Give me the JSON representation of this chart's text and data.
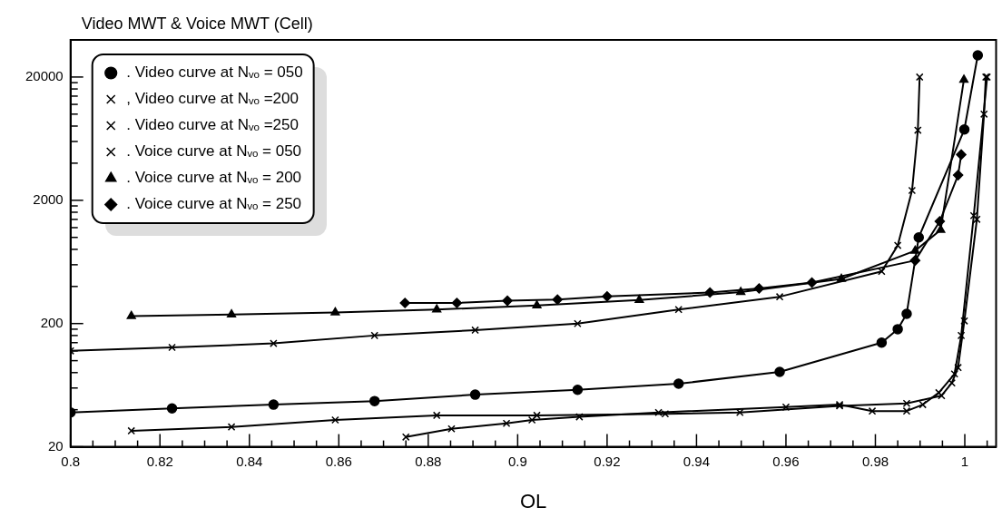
{
  "chart_data": {
    "type": "line",
    "title": "Video MWT & Voice MWT (Cell)",
    "xlabel": "OL",
    "log": "y",
    "grid": false,
    "legend": "top left",
    "line_style": "solid",
    "xlim": [
      0.8,
      1.007
    ],
    "xticks": [
      0.8,
      {
        "value": 0.805,
        "label": null
      },
      {
        "value": 0.81,
        "label": null
      },
      {
        "value": 0.815,
        "label": null
      },
      0.82,
      {
        "value": 0.825,
        "label": null
      },
      {
        "value": 0.83,
        "label": null
      },
      {
        "value": 0.835,
        "label": null
      },
      0.84,
      {
        "value": 0.845,
        "label": null
      },
      {
        "value": 0.85,
        "label": null
      },
      {
        "value": 0.855,
        "label": null
      },
      0.86,
      {
        "value": 0.865,
        "label": null
      },
      {
        "value": 0.87,
        "label": null
      },
      {
        "value": 0.875,
        "label": null
      },
      0.88,
      {
        "value": 0.885,
        "label": null
      },
      {
        "value": 0.89,
        "label": null
      },
      {
        "value": 0.895,
        "label": null
      },
      0.9,
      {
        "value": 0.905,
        "label": null
      },
      {
        "value": 0.91,
        "label": null
      },
      {
        "value": 0.915,
        "label": null
      },
      0.92,
      {
        "value": 0.925,
        "label": null
      },
      {
        "value": 0.93,
        "label": null
      },
      {
        "value": 0.935,
        "label": null
      },
      0.94,
      {
        "value": 0.945,
        "label": null
      },
      {
        "value": 0.95,
        "label": null
      },
      {
        "value": 0.955,
        "label": null
      },
      0.96,
      {
        "value": 0.965,
        "label": null
      },
      {
        "value": 0.97,
        "label": null
      },
      {
        "value": 0.975,
        "label": null
      },
      0.98,
      {
        "value": 0.985,
        "label": null
      },
      {
        "value": 0.99,
        "label": null
      },
      {
        "value": 0.995,
        "label": null
      },
      1,
      {
        "value": 1.005,
        "label": null
      }
    ],
    "ylim": [
      20,
      40000
    ],
    "yticks": [
      20,
      {
        "value": 40,
        "label": null
      },
      {
        "value": 60,
        "label": null
      },
      {
        "value": 80,
        "label": null
      },
      {
        "value": 100,
        "label": null
      },
      {
        "value": 120,
        "label": null
      },
      {
        "value": 140,
        "label": null
      },
      {
        "value": 160,
        "label": null
      },
      {
        "value": 180,
        "label": null
      },
      200,
      {
        "value": 400,
        "label": null
      },
      {
        "value": 600,
        "label": null
      },
      {
        "value": 800,
        "label": null
      },
      {
        "value": 1000,
        "label": null
      },
      {
        "value": 1200,
        "label": null
      },
      {
        "value": 1400,
        "label": null
      },
      {
        "value": 1600,
        "label": null
      },
      {
        "value": 1800,
        "label": null
      },
      2000,
      {
        "value": 4000,
        "label": null
      },
      {
        "value": 6000,
        "label": null
      },
      {
        "value": 8000,
        "label": null
      },
      {
        "value": 10000,
        "label": null
      },
      {
        "value": 12000,
        "label": null
      },
      {
        "value": 14000,
        "label": null
      },
      {
        "value": 16000,
        "label": null
      },
      {
        "value": 18000,
        "label": null
      },
      20000
    ],
    "series": [
      {
        "name": ". Video curve at Nᵥₒ = 050",
        "color": "#000000",
        "marker": "circle",
        "x": [
          0.8,
          0.8227,
          0.8454,
          0.868,
          0.8905,
          0.9134,
          0.936,
          0.9586,
          0.9814,
          0.985,
          0.987,
          0.9897,
          0.9999,
          1.0029
        ],
        "values": [
          38,
          41,
          44,
          47,
          53,
          58,
          65,
          81,
          140,
          180,
          240,
          1000,
          7500,
          30000
        ]
      },
      {
        "name": ", Video curve at Nᵥₒ =200",
        "color": "#000000",
        "marker": "cross",
        "x": [
          0.8136,
          0.836,
          0.8592,
          0.8819,
          0.9043,
          0.933,
          0.9497,
          0.972,
          0.987,
          0.9948,
          0.9971,
          0.9985,
          0.9999,
          1.0027,
          1.0043,
          1.0047
        ],
        "values": [
          27,
          29,
          33,
          36,
          36,
          37,
          38,
          43,
          45,
          52,
          66,
          88,
          210,
          1400,
          10000,
          20000
        ]
      },
      {
        "name": ". Video curve at Nᵥₒ =250",
        "color": "#000000",
        "marker": "cross",
        "x": [
          0.875,
          0.8852,
          0.8975,
          0.9032,
          0.9138,
          0.9315,
          0.96,
          0.972,
          0.9793,
          0.987,
          0.9906,
          0.9942,
          0.9977,
          0.9992,
          1.002,
          1.005
        ],
        "values": [
          24,
          28,
          31,
          33,
          35,
          38,
          42,
          44,
          39,
          39,
          44,
          55,
          78,
          160,
          1500,
          20000
        ]
      },
      {
        "name": ". Voice curve at Nᵥₒ = 050",
        "color": "#000000",
        "marker": "cross",
        "x": [
          0.8,
          0.8227,
          0.8454,
          0.868,
          0.8905,
          0.9134,
          0.936,
          0.9586,
          0.9814,
          0.985,
          0.9882,
          0.9895,
          0.9899
        ],
        "values": [
          120,
          128,
          138,
          160,
          177,
          200,
          260,
          330,
          530,
          860,
          2400,
          7400,
          20000
        ]
      },
      {
        "name": ". Voice curve at Nᵥₒ = 200",
        "color": "#000000",
        "marker": "triangle",
        "x": [
          0.8136,
          0.836,
          0.8592,
          0.8819,
          0.9043,
          0.9272,
          0.9499,
          0.9724,
          0.9889,
          0.9946,
          0.9998
        ],
        "values": [
          230,
          237,
          246,
          260,
          280,
          310,
          360,
          460,
          780,
          1150,
          19000
        ]
      },
      {
        "name": ". Voice curve at Nᵥₒ = 250",
        "color": "#000000",
        "marker": "diamond",
        "x": [
          0.8748,
          0.8864,
          0.8977,
          0.9089,
          0.92,
          0.943,
          0.954,
          0.9658,
          0.9889,
          0.9944,
          0.9985,
          0.9992
        ],
        "values": [
          294,
          294,
          306,
          313,
          332,
          357,
          385,
          430,
          650,
          1350,
          3200,
          4700
        ]
      }
    ]
  }
}
